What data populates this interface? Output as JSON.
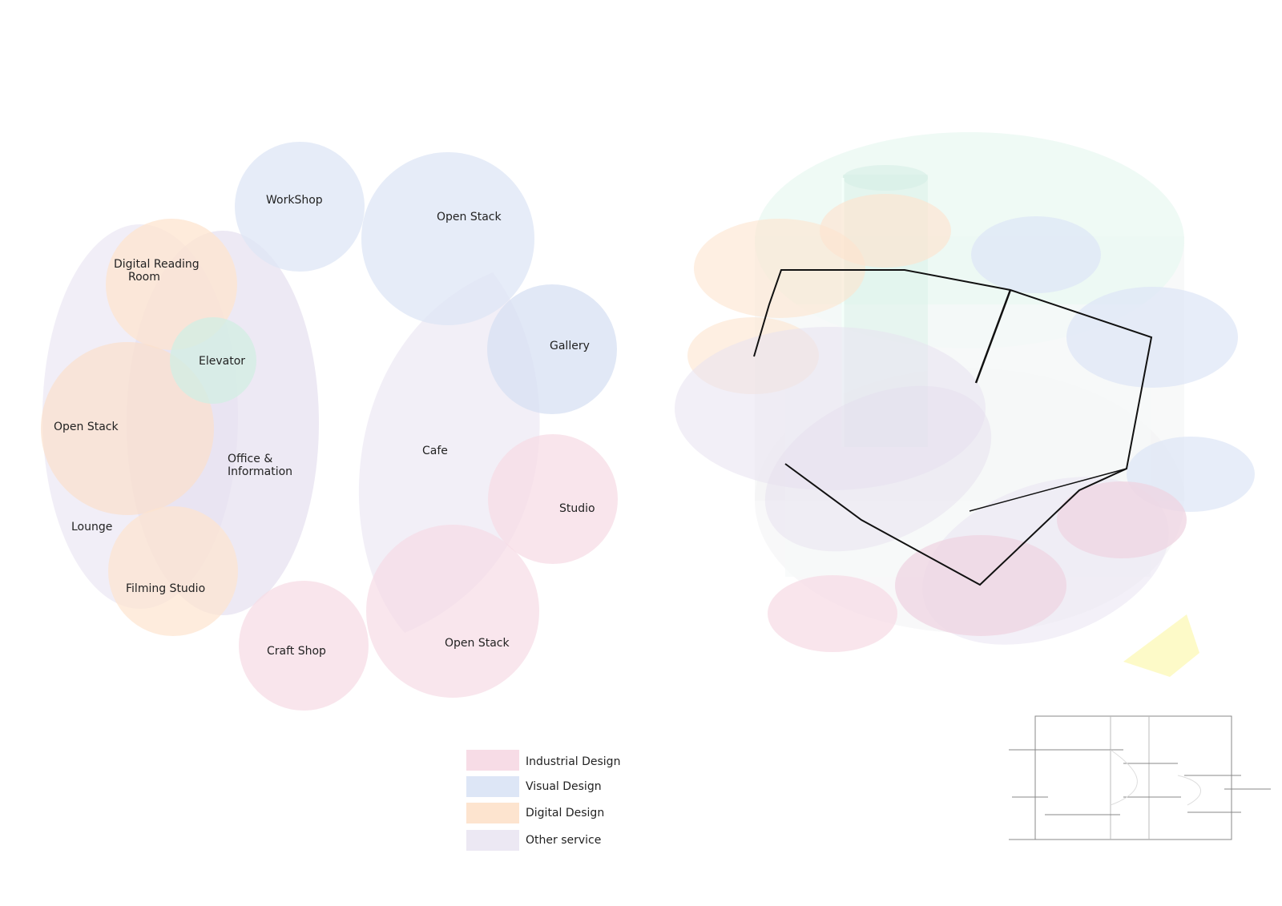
{
  "colors": {
    "industrial_design": "#f7dce6",
    "visual_design": "#dde6f6",
    "digital_design": "#fde4cf",
    "other_service": "#e8e2f1",
    "elevator": "#d3ede4",
    "outline": "#111111",
    "highlight_yellow": "#fbf59a"
  },
  "bubbles": {
    "workshop": "WorkShop",
    "open_stack_top": "Open Stack",
    "digital_reading_room_line1": "Digital Reading",
    "digital_reading_room_line2": "Room",
    "elevator": "Elevator",
    "gallery": "Gallery",
    "open_stack_left": "Open Stack",
    "office_line1": "Office &",
    "office_line2": "Information",
    "cafe": "Cafe",
    "studio": "Studio",
    "lounge": "Lounge",
    "filming_studio": "Filming Studio",
    "craft_shop": "Craft Shop",
    "open_stack_bottom": "Open Stack"
  },
  "legend": [
    {
      "label": "Industrial Design",
      "color": "#f7dce6"
    },
    {
      "label": "Visual Design",
      "color": "#dde6f6"
    },
    {
      "label": "Digital Design",
      "color": "#fde4cf"
    },
    {
      "label": "Other service",
      "color": "#e8e2f1"
    }
  ]
}
